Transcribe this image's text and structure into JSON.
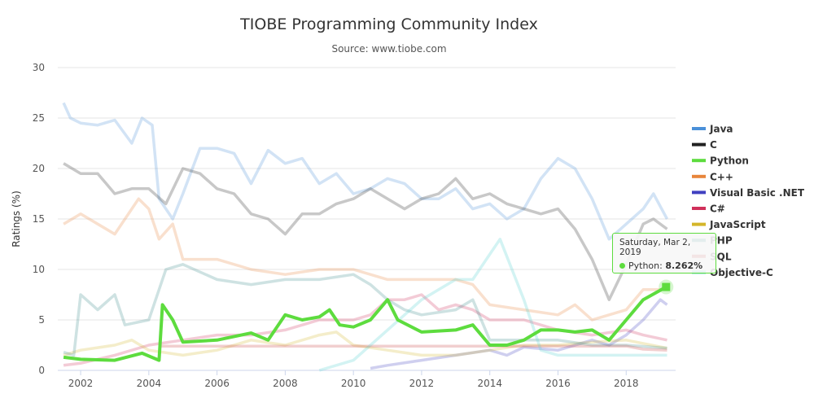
{
  "chart_data": {
    "type": "line",
    "title": "TIOBE Programming Community Index",
    "subtitle": "Source: www.tiobe.com",
    "xlabel": "",
    "ylabel": "Ratings (%)",
    "xlim": [
      2001.33,
      2019.45
    ],
    "ylim": [
      0,
      30
    ],
    "yticks": [
      0,
      5,
      10,
      15,
      20,
      25,
      30
    ],
    "xticks": [
      2002,
      2004,
      2006,
      2008,
      2010,
      2012,
      2014,
      2016,
      2018
    ],
    "grid": true,
    "legend": "right",
    "series": [
      {
        "name": "Java",
        "color": "#4a90d9",
        "points": [
          [
            2001.5,
            26.5
          ],
          [
            2001.7,
            25
          ],
          [
            2002,
            24.5
          ],
          [
            2002.5,
            24.3
          ],
          [
            2003,
            24.8
          ],
          [
            2003.5,
            22.5
          ],
          [
            2003.8,
            25
          ],
          [
            2004.1,
            24.3
          ],
          [
            2004.3,
            17
          ],
          [
            2004.7,
            15
          ],
          [
            2005,
            17.5
          ],
          [
            2005.5,
            22
          ],
          [
            2006,
            22
          ],
          [
            2006.5,
            21.5
          ],
          [
            2007,
            18.5
          ],
          [
            2007.5,
            21.8
          ],
          [
            2008,
            20.5
          ],
          [
            2008.5,
            21
          ],
          [
            2009,
            18.5
          ],
          [
            2009.5,
            19.5
          ],
          [
            2010,
            17.5
          ],
          [
            2010.5,
            18
          ],
          [
            2011,
            19
          ],
          [
            2011.5,
            18.5
          ],
          [
            2012,
            17
          ],
          [
            2012.5,
            17
          ],
          [
            2013,
            18
          ],
          [
            2013.5,
            16
          ],
          [
            2014,
            16.5
          ],
          [
            2014.5,
            15
          ],
          [
            2015,
            16
          ],
          [
            2015.5,
            19
          ],
          [
            2016,
            21
          ],
          [
            2016.5,
            20
          ],
          [
            2017,
            17
          ],
          [
            2017.5,
            13
          ],
          [
            2018,
            14.5
          ],
          [
            2018.5,
            16
          ],
          [
            2018.8,
            17.5
          ],
          [
            2019.2,
            15
          ]
        ]
      },
      {
        "name": "C",
        "color": "#222222",
        "points": [
          [
            2001.5,
            20.5
          ],
          [
            2002,
            19.5
          ],
          [
            2002.5,
            19.5
          ],
          [
            2003,
            17.5
          ],
          [
            2003.5,
            18
          ],
          [
            2004,
            18
          ],
          [
            2004.5,
            16.5
          ],
          [
            2005,
            20
          ],
          [
            2005.5,
            19.5
          ],
          [
            2006,
            18
          ],
          [
            2006.5,
            17.5
          ],
          [
            2007,
            15.5
          ],
          [
            2007.5,
            15
          ],
          [
            2008,
            13.5
          ],
          [
            2008.5,
            15.5
          ],
          [
            2009,
            15.5
          ],
          [
            2009.5,
            16.5
          ],
          [
            2010,
            17
          ],
          [
            2010.5,
            18
          ],
          [
            2011,
            17
          ],
          [
            2011.5,
            16
          ],
          [
            2012,
            17
          ],
          [
            2012.5,
            17.5
          ],
          [
            2013,
            19
          ],
          [
            2013.5,
            17
          ],
          [
            2014,
            17.5
          ],
          [
            2014.5,
            16.5
          ],
          [
            2015,
            16
          ],
          [
            2015.5,
            15.5
          ],
          [
            2016,
            16
          ],
          [
            2016.5,
            14
          ],
          [
            2017,
            11
          ],
          [
            2017.5,
            7
          ],
          [
            2018,
            10.5
          ],
          [
            2018.5,
            14.5
          ],
          [
            2018.8,
            15
          ],
          [
            2019.2,
            14
          ]
        ]
      },
      {
        "name": "Python",
        "color": "#5ddc3e",
        "points": [
          [
            2001.5,
            1.3
          ],
          [
            2002,
            1.1
          ],
          [
            2003,
            1
          ],
          [
            2003.8,
            1.7
          ],
          [
            2004.3,
            1
          ],
          [
            2004.4,
            6.5
          ],
          [
            2004.7,
            5
          ],
          [
            2005,
            2.8
          ],
          [
            2006,
            3
          ],
          [
            2007,
            3.7
          ],
          [
            2007.5,
            3
          ],
          [
            2008,
            5.5
          ],
          [
            2008.5,
            5
          ],
          [
            2009,
            5.3
          ],
          [
            2009.3,
            6
          ],
          [
            2009.6,
            4.5
          ],
          [
            2010,
            4.3
          ],
          [
            2010.5,
            5
          ],
          [
            2011,
            7
          ],
          [
            2011.3,
            5
          ],
          [
            2012,
            3.8
          ],
          [
            2013,
            4
          ],
          [
            2013.5,
            4.5
          ],
          [
            2014,
            2.5
          ],
          [
            2014.5,
            2.5
          ],
          [
            2015,
            3
          ],
          [
            2015.5,
            4
          ],
          [
            2016,
            4
          ],
          [
            2016.5,
            3.8
          ],
          [
            2017,
            4
          ],
          [
            2017.5,
            3
          ],
          [
            2018,
            5
          ],
          [
            2018.5,
            7
          ],
          [
            2019.17,
            8.262
          ]
        ]
      },
      {
        "name": "C++",
        "color": "#e8853b",
        "points": [
          [
            2001.5,
            14.5
          ],
          [
            2002,
            15.5
          ],
          [
            2003,
            13.5
          ],
          [
            2003.7,
            17
          ],
          [
            2004,
            16
          ],
          [
            2004.3,
            13
          ],
          [
            2004.7,
            14.5
          ],
          [
            2005,
            11
          ],
          [
            2006,
            11
          ],
          [
            2007,
            10
          ],
          [
            2008,
            9.5
          ],
          [
            2009,
            10
          ],
          [
            2010,
            10
          ],
          [
            2011,
            9
          ],
          [
            2012,
            9
          ],
          [
            2013,
            9
          ],
          [
            2013.5,
            8.5
          ],
          [
            2014,
            6.5
          ],
          [
            2015,
            6
          ],
          [
            2016,
            5.5
          ],
          [
            2016.5,
            6.5
          ],
          [
            2017,
            5
          ],
          [
            2017.5,
            5.5
          ],
          [
            2018,
            6
          ],
          [
            2018.5,
            8
          ],
          [
            2019.2,
            8
          ]
        ]
      },
      {
        "name": "Visual Basic .NET",
        "color": "#4040c0",
        "points": [
          [
            2010.5,
            0.2
          ],
          [
            2011,
            0.5
          ],
          [
            2012,
            1
          ],
          [
            2013,
            1.5
          ],
          [
            2014,
            2
          ],
          [
            2014.5,
            1.5
          ],
          [
            2015,
            2.3
          ],
          [
            2016,
            2
          ],
          [
            2017,
            3
          ],
          [
            2017.5,
            2.5
          ],
          [
            2018,
            3.5
          ],
          [
            2018.5,
            5
          ],
          [
            2019,
            7
          ],
          [
            2019.2,
            6.5
          ]
        ]
      },
      {
        "name": "C#",
        "color": "#d0305a",
        "points": [
          [
            2001.5,
            0.5
          ],
          [
            2002,
            0.7
          ],
          [
            2003,
            1.5
          ],
          [
            2004,
            2.5
          ],
          [
            2005,
            3
          ],
          [
            2006,
            3.5
          ],
          [
            2007,
            3.5
          ],
          [
            2008,
            4
          ],
          [
            2009,
            5
          ],
          [
            2010,
            5
          ],
          [
            2010.5,
            5.5
          ],
          [
            2011,
            7
          ],
          [
            2011.5,
            7
          ],
          [
            2012,
            7.5
          ],
          [
            2012.5,
            6
          ],
          [
            2013,
            6.5
          ],
          [
            2013.5,
            6
          ],
          [
            2014,
            5
          ],
          [
            2015,
            5
          ],
          [
            2016,
            4
          ],
          [
            2017,
            3.5
          ],
          [
            2018,
            4
          ],
          [
            2018.5,
            3.5
          ],
          [
            2019.2,
            3
          ]
        ]
      },
      {
        "name": "JavaScript",
        "color": "#d4b62a",
        "points": [
          [
            2001.5,
            1.5
          ],
          [
            2002,
            2
          ],
          [
            2003,
            2.5
          ],
          [
            2003.5,
            3
          ],
          [
            2004,
            2
          ],
          [
            2005,
            1.5
          ],
          [
            2006,
            2
          ],
          [
            2007,
            3
          ],
          [
            2008,
            2.5
          ],
          [
            2009,
            3.5
          ],
          [
            2009.5,
            3.8
          ],
          [
            2010,
            2.5
          ],
          [
            2011,
            2
          ],
          [
            2012,
            1.5
          ],
          [
            2013,
            1.5
          ],
          [
            2014,
            2
          ],
          [
            2015,
            2.5
          ],
          [
            2016,
            2.5
          ],
          [
            2017,
            2.8
          ],
          [
            2018,
            3
          ],
          [
            2019.2,
            2.2
          ]
        ]
      },
      {
        "name": "PHP",
        "color": "#3a8a8a",
        "points": [
          [
            2001.5,
            1.8
          ],
          [
            2001.8,
            1.5
          ],
          [
            2002,
            7.5
          ],
          [
            2002.5,
            6
          ],
          [
            2003,
            7.5
          ],
          [
            2003.3,
            4.5
          ],
          [
            2004,
            5
          ],
          [
            2004.5,
            10
          ],
          [
            2005,
            10.5
          ],
          [
            2006,
            9
          ],
          [
            2007,
            8.5
          ],
          [
            2008,
            9
          ],
          [
            2009,
            9
          ],
          [
            2010,
            9.5
          ],
          [
            2010.5,
            8.5
          ],
          [
            2011,
            7
          ],
          [
            2011.5,
            6
          ],
          [
            2012,
            5.5
          ],
          [
            2013,
            6
          ],
          [
            2013.5,
            7
          ],
          [
            2014,
            3
          ],
          [
            2015,
            3
          ],
          [
            2016,
            3
          ],
          [
            2017,
            2.5
          ],
          [
            2018,
            2.5
          ],
          [
            2019.2,
            2.2
          ]
        ]
      },
      {
        "name": "SQL",
        "color": "#c84040",
        "points": [
          [
            2004.3,
            2.4
          ],
          [
            2018,
            2.4
          ],
          [
            2018.5,
            2.1
          ],
          [
            2019.2,
            2
          ]
        ]
      },
      {
        "name": "Objective-C",
        "color": "#50d0d0",
        "points": [
          [
            2009,
            0
          ],
          [
            2010,
            1
          ],
          [
            2011,
            4
          ],
          [
            2012,
            7
          ],
          [
            2013,
            9
          ],
          [
            2013.5,
            9
          ],
          [
            2014,
            11.5
          ],
          [
            2014.3,
            13
          ],
          [
            2015,
            7
          ],
          [
            2015.5,
            2
          ],
          [
            2016,
            1.5
          ],
          [
            2017,
            1.5
          ],
          [
            2018,
            1.5
          ],
          [
            2019.2,
            1.5
          ]
        ]
      }
    ],
    "highlighted_series": "Python",
    "tooltip": {
      "date": "Saturday, Mar 2, 2019",
      "series": "Python",
      "label": "Python: ",
      "value": "8.262%"
    }
  }
}
